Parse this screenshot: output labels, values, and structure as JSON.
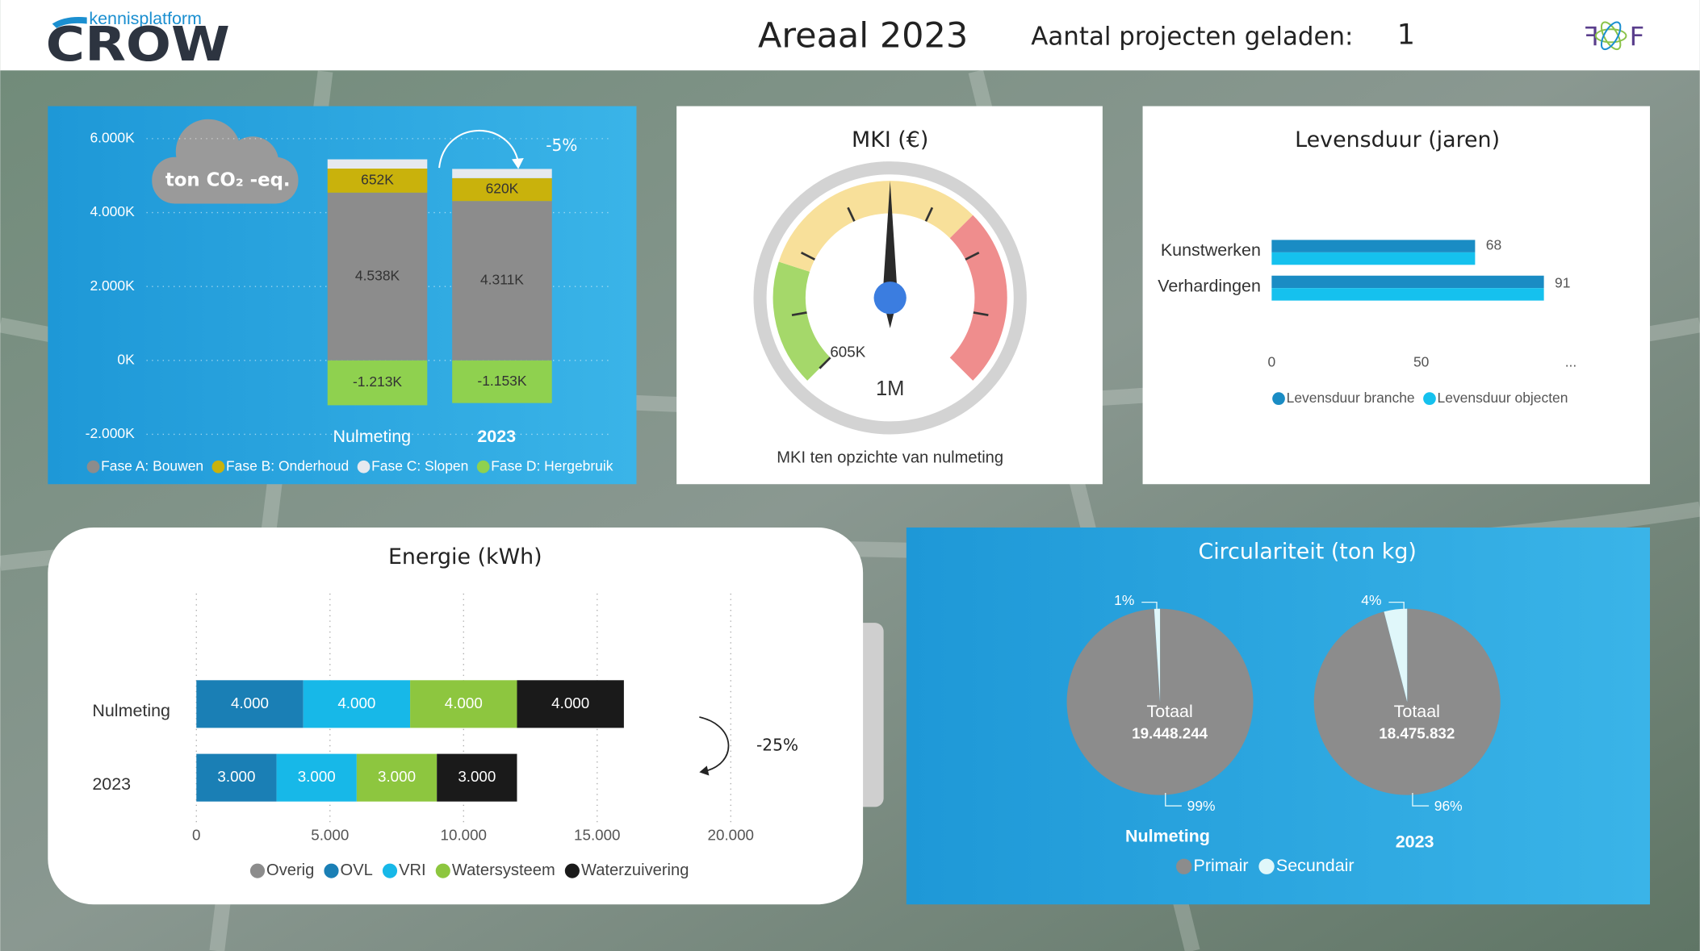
{
  "header": {
    "logo_small": "kennisplatform",
    "logo": "CROW",
    "title": "Areaal 2023",
    "projects_label": "Aantal projecten geladen:",
    "projects": 1,
    "partner_logo": [
      "F",
      "F"
    ]
  },
  "chart_data": [
    {
      "type": "stacked_bar",
      "unit_label": "ton CO₂ -eq.",
      "annotation": "-5%",
      "categories": [
        "Nulmeting",
        "2023"
      ],
      "series": [
        {
          "name": "Fase A: Bouwen",
          "color": "#8c8c8c",
          "values": [
            4538,
            4311
          ],
          "value_labels": [
            "4.538K",
            "4.311K"
          ]
        },
        {
          "name": "Fase B: Onderhoud",
          "color": "#c9b20c",
          "values": [
            652,
            620
          ],
          "value_labels": [
            "652K",
            "620K"
          ]
        },
        {
          "name": "Fase C: Slopen",
          "color": "#e6e9ef",
          "values": [
            250,
            250
          ]
        },
        {
          "name": "Fase D: Hergebruik",
          "color": "#8fd14f",
          "values": [
            -1213,
            -1153
          ],
          "value_labels": [
            "-1.213K",
            "-1.153K"
          ]
        }
      ],
      "ylim": [
        -2000,
        6000
      ],
      "yticks": [
        {
          "value": -2000,
          "label": "-2.000K"
        },
        {
          "value": 0,
          "label": "0K"
        },
        {
          "value": 2000,
          "label": "2.000K"
        },
        {
          "value": 4000,
          "label": "4.000K"
        },
        {
          "value": 6000,
          "label": "6.000K"
        }
      ],
      "grid": true,
      "legend": "bottom"
    },
    {
      "type": "gauge",
      "title": "MKI (€)",
      "subtitle": "MKI ten opzichte van nulmeting",
      "value": 1000000,
      "value_label": "1M",
      "min": {
        "value": 605000,
        "label": "605K"
      },
      "max": 1395000
    },
    {
      "type": "grouped_hbar",
      "title": "Levensduur (jaren)",
      "categories": [
        "Kunstwerken",
        "Verhardingen"
      ],
      "series": [
        {
          "name": "Levensduur branche",
          "color": "#1a8cc4",
          "values": [
            68,
            91
          ]
        },
        {
          "name": "Levensduur objecten",
          "color": "#15c1ee",
          "values": [
            68,
            91
          ]
        }
      ],
      "xlim": [
        0,
        100
      ],
      "xticks": [
        0,
        50,
        {
          "value": 100,
          "label": "..."
        }
      ],
      "legend": "bottom"
    },
    {
      "type": "stacked_hbar",
      "title": "Energie (kWh)",
      "annotation": "-25%",
      "categories": [
        "Nulmeting",
        "2023"
      ],
      "series": [
        {
          "name": "Overig",
          "color": "#8c8c8c",
          "values": [
            0,
            0
          ]
        },
        {
          "name": "OVL",
          "color": "#1a7fb5",
          "values": [
            4000,
            3000
          ],
          "value_labels": [
            "4.000",
            "3.000"
          ]
        },
        {
          "name": "VRI",
          "color": "#17b8e8",
          "values": [
            4000,
            3000
          ],
          "value_labels": [
            "4.000",
            "3.000"
          ]
        },
        {
          "name": "Watersysteem",
          "color": "#8dc63f",
          "values": [
            4000,
            3000
          ],
          "value_labels": [
            "4.000",
            "3.000"
          ]
        },
        {
          "name": "Waterzuivering",
          "color": "#1a1a1a",
          "values": [
            4000,
            3000
          ],
          "value_labels": [
            "4.000",
            "3.000"
          ]
        }
      ],
      "xlim": [
        0,
        20000
      ],
      "xticks": [
        0,
        {
          "value": 5000,
          "label": "5.000"
        },
        {
          "value": 10000,
          "label": "10.000"
        },
        {
          "value": 15000,
          "label": "15.000"
        },
        {
          "value": 20000,
          "label": "20.000"
        }
      ],
      "grid": true,
      "legend": "bottom"
    },
    {
      "type": "pie",
      "title": "Circulariteit (ton kg)",
      "center_label": "Totaal",
      "categories": [
        "Primair",
        "Secundair"
      ],
      "colors": [
        "#8c8c8c",
        "#e0f7fa"
      ],
      "series": [
        {
          "name": "Nulmeting",
          "values": [
            99,
            1
          ],
          "value_labels": [
            "99%",
            "1%"
          ],
          "total": "19.448.244"
        },
        {
          "name": "2023",
          "values": [
            96,
            4
          ],
          "value_labels": [
            "96%",
            "4%"
          ],
          "total": "18.475.832"
        }
      ],
      "legend": "bottom"
    }
  ]
}
